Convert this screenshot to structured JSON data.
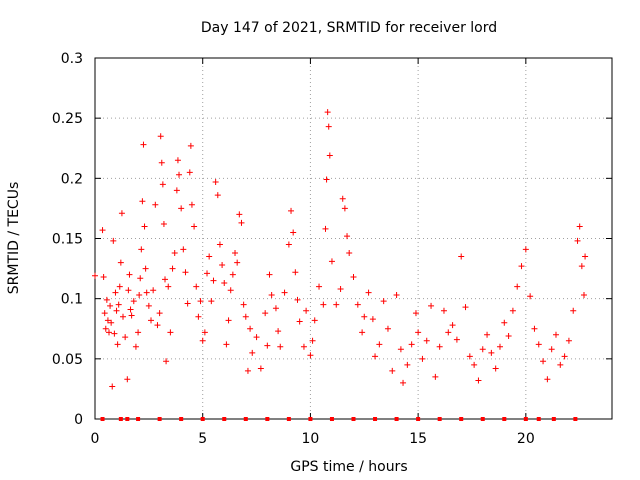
{
  "chart_data": {
    "type": "scatter",
    "title": "Day 147 of 2021, SRMTID for receiver lord",
    "xlabel": "GPS time / hours",
    "ylabel": "SRMTID / TECUs",
    "xlim": [
      0,
      24
    ],
    "ylim": [
      0,
      0.3
    ],
    "x_ticks": [
      0,
      5,
      10,
      15,
      20
    ],
    "x_tick_labels": [
      "0",
      "5",
      "10",
      "15",
      "20"
    ],
    "y_ticks": [
      0,
      0.05,
      0.1,
      0.15,
      0.2,
      0.25,
      0.3
    ],
    "y_tick_labels": [
      "0",
      "0.05",
      "0.1",
      "0.15",
      "0.2",
      "0.25",
      "0.3"
    ],
    "grid": true,
    "marker": "+",
    "color": "#ff0000",
    "series": [
      {
        "name": "SRMTID",
        "points": [
          [
            0.0,
            0.119
          ],
          [
            0.35,
            0.157
          ],
          [
            0.4,
            0.118
          ],
          [
            0.45,
            0.088
          ],
          [
            0.5,
            0.075
          ],
          [
            0.55,
            0.099
          ],
          [
            0.6,
            0.082
          ],
          [
            0.65,
            0.072
          ],
          [
            0.7,
            0.094
          ],
          [
            0.75,
            0.08
          ],
          [
            0.8,
            0.027
          ],
          [
            0.85,
            0.148
          ],
          [
            0.9,
            0.071
          ],
          [
            0.95,
            0.105
          ],
          [
            1.0,
            0.09
          ],
          [
            1.05,
            0.062
          ],
          [
            1.1,
            0.095
          ],
          [
            1.15,
            0.11
          ],
          [
            1.2,
            0.13
          ],
          [
            1.25,
            0.171
          ],
          [
            1.3,
            0.085
          ],
          [
            1.4,
            0.068
          ],
          [
            1.5,
            0.033
          ],
          [
            1.55,
            0.107
          ],
          [
            1.6,
            0.12
          ],
          [
            1.65,
            0.091
          ],
          [
            1.7,
            0.086
          ],
          [
            1.8,
            0.098
          ],
          [
            1.9,
            0.06
          ],
          [
            2.0,
            0.072
          ],
          [
            2.05,
            0.103
          ],
          [
            2.1,
            0.117
          ],
          [
            2.15,
            0.141
          ],
          [
            2.2,
            0.181
          ],
          [
            2.25,
            0.228
          ],
          [
            2.3,
            0.16
          ],
          [
            2.35,
            0.125
          ],
          [
            2.4,
            0.105
          ],
          [
            2.5,
            0.094
          ],
          [
            2.6,
            0.082
          ],
          [
            2.7,
            0.107
          ],
          [
            2.8,
            0.178
          ],
          [
            2.9,
            0.078
          ],
          [
            3.0,
            0.088
          ],
          [
            3.05,
            0.235
          ],
          [
            3.1,
            0.213
          ],
          [
            3.15,
            0.195
          ],
          [
            3.2,
            0.162
          ],
          [
            3.25,
            0.116
          ],
          [
            3.3,
            0.048
          ],
          [
            3.4,
            0.11
          ],
          [
            3.5,
            0.072
          ],
          [
            3.6,
            0.125
          ],
          [
            3.7,
            0.138
          ],
          [
            3.8,
            0.19
          ],
          [
            3.85,
            0.215
          ],
          [
            3.9,
            0.203
          ],
          [
            4.0,
            0.175
          ],
          [
            4.1,
            0.141
          ],
          [
            4.2,
            0.122
          ],
          [
            4.3,
            0.096
          ],
          [
            4.4,
            0.205
          ],
          [
            4.45,
            0.227
          ],
          [
            4.5,
            0.178
          ],
          [
            4.6,
            0.16
          ],
          [
            4.7,
            0.11
          ],
          [
            4.8,
            0.085
          ],
          [
            4.9,
            0.098
          ],
          [
            5.0,
            0.065
          ],
          [
            5.1,
            0.072
          ],
          [
            5.2,
            0.121
          ],
          [
            5.3,
            0.135
          ],
          [
            5.4,
            0.098
          ],
          [
            5.5,
            0.115
          ],
          [
            5.6,
            0.197
          ],
          [
            5.7,
            0.186
          ],
          [
            5.8,
            0.145
          ],
          [
            5.9,
            0.128
          ],
          [
            6.0,
            0.113
          ],
          [
            6.1,
            0.062
          ],
          [
            6.2,
            0.082
          ],
          [
            6.3,
            0.107
          ],
          [
            6.4,
            0.12
          ],
          [
            6.5,
            0.138
          ],
          [
            6.6,
            0.13
          ],
          [
            6.7,
            0.17
          ],
          [
            6.8,
            0.163
          ],
          [
            6.9,
            0.095
          ],
          [
            7.0,
            0.085
          ],
          [
            7.1,
            0.04
          ],
          [
            7.2,
            0.075
          ],
          [
            7.3,
            0.055
          ],
          [
            7.5,
            0.068
          ],
          [
            7.7,
            0.042
          ],
          [
            7.9,
            0.088
          ],
          [
            8.0,
            0.061
          ],
          [
            8.1,
            0.12
          ],
          [
            8.2,
            0.103
          ],
          [
            8.4,
            0.092
          ],
          [
            8.5,
            0.073
          ],
          [
            8.6,
            0.06
          ],
          [
            8.8,
            0.105
          ],
          [
            9.0,
            0.145
          ],
          [
            9.1,
            0.173
          ],
          [
            9.2,
            0.155
          ],
          [
            9.3,
            0.122
          ],
          [
            9.4,
            0.099
          ],
          [
            9.5,
            0.081
          ],
          [
            9.7,
            0.06
          ],
          [
            9.8,
            0.09
          ],
          [
            10.0,
            0.053
          ],
          [
            10.1,
            0.065
          ],
          [
            10.2,
            0.082
          ],
          [
            10.4,
            0.11
          ],
          [
            10.6,
            0.095
          ],
          [
            10.7,
            0.158
          ],
          [
            10.75,
            0.199
          ],
          [
            10.8,
            0.255
          ],
          [
            10.85,
            0.243
          ],
          [
            10.9,
            0.219
          ],
          [
            11.0,
            0.131
          ],
          [
            11.2,
            0.095
          ],
          [
            11.4,
            0.108
          ],
          [
            11.5,
            0.183
          ],
          [
            11.6,
            0.175
          ],
          [
            11.7,
            0.152
          ],
          [
            11.8,
            0.138
          ],
          [
            12.0,
            0.118
          ],
          [
            12.2,
            0.095
          ],
          [
            12.4,
            0.072
          ],
          [
            12.5,
            0.085
          ],
          [
            12.7,
            0.105
          ],
          [
            12.9,
            0.083
          ],
          [
            13.0,
            0.052
          ],
          [
            13.2,
            0.062
          ],
          [
            13.4,
            0.098
          ],
          [
            13.6,
            0.075
          ],
          [
            13.8,
            0.04
          ],
          [
            14.0,
            0.103
          ],
          [
            14.2,
            0.058
          ],
          [
            14.3,
            0.03
          ],
          [
            14.5,
            0.045
          ],
          [
            14.7,
            0.062
          ],
          [
            14.9,
            0.088
          ],
          [
            15.0,
            0.072
          ],
          [
            15.2,
            0.05
          ],
          [
            15.4,
            0.065
          ],
          [
            15.6,
            0.094
          ],
          [
            15.8,
            0.035
          ],
          [
            16.0,
            0.06
          ],
          [
            16.2,
            0.09
          ],
          [
            16.4,
            0.072
          ],
          [
            16.6,
            0.078
          ],
          [
            16.8,
            0.066
          ],
          [
            17.0,
            0.135
          ],
          [
            17.2,
            0.093
          ],
          [
            17.4,
            0.052
          ],
          [
            17.6,
            0.045
          ],
          [
            17.8,
            0.032
          ],
          [
            18.0,
            0.058
          ],
          [
            18.2,
            0.07
          ],
          [
            18.4,
            0.055
          ],
          [
            18.6,
            0.042
          ],
          [
            18.8,
            0.06
          ],
          [
            19.0,
            0.08
          ],
          [
            19.2,
            0.069
          ],
          [
            19.4,
            0.09
          ],
          [
            19.6,
            0.11
          ],
          [
            19.8,
            0.127
          ],
          [
            20.0,
            0.141
          ],
          [
            20.2,
            0.102
          ],
          [
            20.4,
            0.075
          ],
          [
            20.6,
            0.062
          ],
          [
            20.8,
            0.048
          ],
          [
            21.0,
            0.033
          ],
          [
            21.2,
            0.058
          ],
          [
            21.4,
            0.07
          ],
          [
            21.6,
            0.045
          ],
          [
            21.8,
            0.052
          ],
          [
            22.0,
            0.065
          ],
          [
            22.2,
            0.09
          ],
          [
            22.4,
            0.148
          ],
          [
            22.5,
            0.16
          ],
          [
            22.6,
            0.127
          ],
          [
            22.7,
            0.103
          ],
          [
            22.75,
            0.135
          ]
        ]
      }
    ],
    "axis_markers": {
      "description": "dense red marks along the x-axis at y=0",
      "x": [
        0.35,
        1.2,
        1.5,
        2.0,
        3.0,
        4.0,
        5.0,
        6.0,
        7.0,
        8.0,
        9.0,
        10.0,
        11.0,
        12.0,
        13.0,
        14.0,
        15.0,
        16.0,
        17.0,
        18.0,
        19.0,
        20.0,
        20.6,
        21.3,
        22.3
      ]
    }
  }
}
